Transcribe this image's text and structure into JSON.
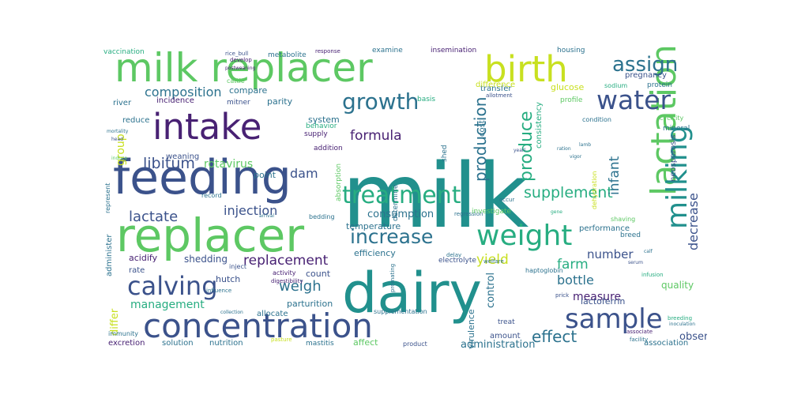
{
  "word_cloud": {
    "palette": {
      "purple": "#482173",
      "indigo": "#3b528b",
      "blue": "#2c728e",
      "teal": "#21908d",
      "green": "#27ad81",
      "lime": "#5dc863",
      "yellow": "#c8e020",
      "dark_purple": "#440154"
    },
    "words": [
      {
        "text": "milk",
        "color": "#21908d"
      },
      {
        "text": "dairy",
        "color": "#21908d"
      },
      {
        "text": "feeding",
        "color": "#3b528b"
      },
      {
        "text": "replacer",
        "color": "#5dc863"
      },
      {
        "text": "milk replacer",
        "color": "#5dc863"
      },
      {
        "text": "concentration",
        "color": "#3b528b"
      },
      {
        "text": "intake",
        "color": "#482173"
      },
      {
        "text": "birth",
        "color": "#c8e020"
      },
      {
        "text": "treatment",
        "color": "#27ad81"
      },
      {
        "text": "lactation",
        "color": "#5dc863"
      },
      {
        "text": "calving",
        "color": "#3b528b"
      },
      {
        "text": "weight",
        "color": "#27ad81"
      },
      {
        "text": "milking",
        "color": "#21908d"
      },
      {
        "text": "sample",
        "color": "#3b528b"
      },
      {
        "text": "water",
        "color": "#3b528b"
      },
      {
        "text": "growth",
        "color": "#2c728e"
      },
      {
        "text": "increase",
        "color": "#2c728e"
      },
      {
        "text": "assign",
        "color": "#2c728e"
      },
      {
        "text": "supplement",
        "color": "#27ad81"
      },
      {
        "text": "replacement",
        "color": "#482173"
      },
      {
        "text": "lactate",
        "color": "#3b528b"
      },
      {
        "text": "produce",
        "color": "#27ad81"
      },
      {
        "text": "production",
        "color": "#2c728e"
      },
      {
        "text": "composition",
        "color": "#2c728e"
      },
      {
        "text": "libitum",
        "color": "#3b528b"
      },
      {
        "text": "infant",
        "color": "#2c728e"
      },
      {
        "text": "effect",
        "color": "#2c728e"
      },
      {
        "text": "management",
        "color": "#27ad81"
      },
      {
        "text": "weigh",
        "color": "#2c728e"
      },
      {
        "text": "dam",
        "color": "#3b528b"
      },
      {
        "text": "injection",
        "color": "#3b528b"
      },
      {
        "text": "rotavirus",
        "color": "#5dc863"
      },
      {
        "text": "formula",
        "color": "#482173"
      },
      {
        "text": "decrease",
        "color": "#3b528b"
      },
      {
        "text": "farm",
        "color": "#27ad81"
      },
      {
        "text": "yield",
        "color": "#c8e020"
      },
      {
        "text": "bottle",
        "color": "#2c728e"
      },
      {
        "text": "measure",
        "color": "#482173"
      },
      {
        "text": "number",
        "color": "#3b528b"
      },
      {
        "text": "consumption",
        "color": "#2c728e"
      },
      {
        "text": "group",
        "color": "#c8e020"
      },
      {
        "text": "differ",
        "color": "#c8e020"
      },
      {
        "text": "shedding",
        "color": "#3b528b"
      },
      {
        "text": "observe",
        "color": "#3b528b"
      },
      {
        "text": "parturition",
        "color": "#2c728e"
      },
      {
        "text": "efficiency",
        "color": "#2c728e"
      },
      {
        "text": "hutch",
        "color": "#3b528b"
      },
      {
        "text": "temperature",
        "color": "#2c728e"
      },
      {
        "text": "quality",
        "color": "#5dc863"
      },
      {
        "text": "acidify",
        "color": "#482173"
      },
      {
        "text": "lactoferrin",
        "color": "#3b528b"
      },
      {
        "text": "rate",
        "color": "#3b528b"
      },
      {
        "text": "administration",
        "color": "#2c728e"
      },
      {
        "text": "solution",
        "color": "#2c728e"
      },
      {
        "text": "nutrition",
        "color": "#2c728e"
      },
      {
        "text": "amount",
        "color": "#3b528b"
      },
      {
        "text": "excretion",
        "color": "#482173"
      },
      {
        "text": "affect",
        "color": "#5dc863"
      },
      {
        "text": "mastitis",
        "color": "#2c728e"
      },
      {
        "text": "association",
        "color": "#2c728e"
      },
      {
        "text": "control",
        "color": "#2c728e"
      },
      {
        "text": "virulence",
        "color": "#2c728e"
      },
      {
        "text": "weaning",
        "color": "#3b528b"
      },
      {
        "text": "parity",
        "color": "#2c728e"
      },
      {
        "text": "compare",
        "color": "#2c728e"
      },
      {
        "text": "system",
        "color": "#2c728e"
      },
      {
        "text": "incidence",
        "color": "#482173"
      },
      {
        "text": "reduce",
        "color": "#2c728e"
      },
      {
        "text": "river",
        "color": "#2c728e"
      },
      {
        "text": "point",
        "color": "#2c728e"
      },
      {
        "text": "supply",
        "color": "#482173"
      },
      {
        "text": "behavior",
        "color": "#27ad81"
      },
      {
        "text": "basis",
        "color": "#27ad81"
      },
      {
        "text": "cost",
        "color": "#2c728e"
      },
      {
        "text": "glucose",
        "color": "#c8e020"
      },
      {
        "text": "pregnancy",
        "color": "#3b528b"
      },
      {
        "text": "profile",
        "color": "#5dc863"
      },
      {
        "text": "transfer",
        "color": "#2c728e"
      },
      {
        "text": "consistency",
        "color": "#27ad81"
      },
      {
        "text": "condition",
        "color": "#2c728e"
      },
      {
        "text": "mineral",
        "color": "#2c728e"
      },
      {
        "text": "neosporosis",
        "color": "#3b528b"
      },
      {
        "text": "performance",
        "color": "#2c728e"
      },
      {
        "text": "breed",
        "color": "#2c728e"
      },
      {
        "text": "vaccination",
        "color": "#27ad81"
      },
      {
        "text": "metabolite",
        "color": "#2c728e"
      },
      {
        "text": "insemination",
        "color": "#482173"
      },
      {
        "text": "examine",
        "color": "#2c728e"
      },
      {
        "text": "housing",
        "color": "#2c728e"
      },
      {
        "text": "response",
        "color": "#482173"
      },
      {
        "text": "protein",
        "color": "#2c728e"
      },
      {
        "text": "sodium",
        "color": "#27ad81"
      },
      {
        "text": "cattle",
        "color": "#5dc863"
      },
      {
        "text": "develop",
        "color": "#482173"
      },
      {
        "text": "cycicity",
        "color": "#5dc863"
      },
      {
        "text": "difference",
        "color": "#c8e020"
      },
      {
        "text": "record",
        "color": "#2c728e"
      },
      {
        "text": "bedding",
        "color": "#2c728e"
      },
      {
        "text": "regression",
        "color": "#2c728e"
      },
      {
        "text": "investigate",
        "color": "#5dc863"
      },
      {
        "text": "determine",
        "color": "#2c728e"
      },
      {
        "text": "shed",
        "color": "#2c728e"
      },
      {
        "text": "absorption",
        "color": "#5dc863"
      },
      {
        "text": "electrolyte",
        "color": "#3b528b"
      },
      {
        "text": "activity",
        "color": "#482173"
      },
      {
        "text": "count",
        "color": "#3b528b"
      },
      {
        "text": "inject",
        "color": "#3b528b"
      },
      {
        "text": "allocate",
        "color": "#2c728e"
      },
      {
        "text": "addition",
        "color": "#482173"
      },
      {
        "text": "administer",
        "color": "#2c728e"
      },
      {
        "text": "represent",
        "color": "#2c728e"
      },
      {
        "text": "immunity",
        "color": "#2c728e"
      },
      {
        "text": "product",
        "color": "#3b528b"
      },
      {
        "text": "treat",
        "color": "#3b528b"
      },
      {
        "text": "haptoglobin",
        "color": "#2c728e"
      },
      {
        "text": "dehydration",
        "color": "#c8e020"
      },
      {
        "text": "supplementation",
        "color": "#2c728e"
      },
      {
        "text": "digestibility",
        "color": "#482173"
      },
      {
        "text": "influence",
        "color": "#2c728e"
      },
      {
        "text": "delay",
        "color": "#2c728e"
      },
      {
        "text": "welfare",
        "color": "#2c728e"
      },
      {
        "text": "infusion",
        "color": "#27ad81"
      },
      {
        "text": "breeding",
        "color": "#27ad81"
      },
      {
        "text": "associate",
        "color": "#482173"
      },
      {
        "text": "facility",
        "color": "#2c728e"
      },
      {
        "text": "mitner",
        "color": "#3b528b"
      },
      {
        "text": "rice_bull",
        "color": "#3b528b"
      },
      {
        "text": "postweaning",
        "color": "#482173"
      },
      {
        "text": "allotment",
        "color": "#3b528b"
      },
      {
        "text": "inoculation",
        "color": "#2c728e"
      },
      {
        "text": "occur",
        "color": "#2c728e"
      },
      {
        "text": "arrival",
        "color": "#2c728e"
      },
      {
        "text": "gene",
        "color": "#27ad81"
      },
      {
        "text": "shaving",
        "color": "#5dc863"
      },
      {
        "text": "mortality",
        "color": "#2c728e"
      },
      {
        "text": "head",
        "color": "#3b528b"
      },
      {
        "text": "induce",
        "color": "#5dc863"
      },
      {
        "text": "premating",
        "color": "#2c728e"
      },
      {
        "text": "pasture",
        "color": "#c8e020"
      },
      {
        "text": "collection",
        "color": "#2c728e"
      },
      {
        "text": "serum",
        "color": "#3b528b"
      },
      {
        "text": "ration",
        "color": "#2c728e"
      },
      {
        "text": "vigor",
        "color": "#2c728e"
      },
      {
        "text": "yearl",
        "color": "#3b528b"
      },
      {
        "text": "prick",
        "color": "#3b528b"
      },
      {
        "text": "calf",
        "color": "#2c728e"
      },
      {
        "text": "lamb",
        "color": "#2c728e"
      }
    ]
  }
}
